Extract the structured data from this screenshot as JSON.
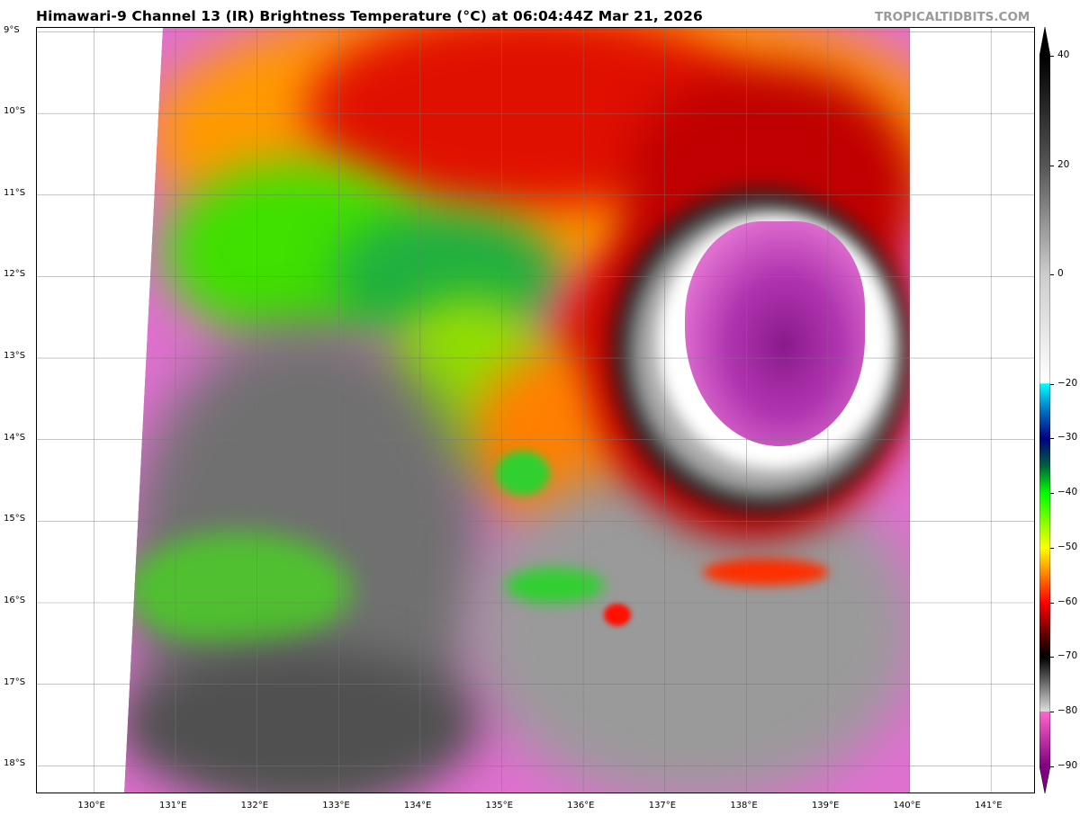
{
  "header": {
    "title": "Himawari-9 Channel 13 (IR) Brightness Temperature (°C) at 06:04:44Z Mar 21, 2026",
    "watermark": "TROPICALTIDBITS.COM"
  },
  "map": {
    "lat_ticks": [
      "9°S",
      "10°S",
      "11°S",
      "12°S",
      "13°S",
      "14°S",
      "15°S",
      "16°S",
      "17°S",
      "18°S"
    ],
    "lon_ticks": [
      "130°E",
      "131°E",
      "132°E",
      "133°E",
      "134°E",
      "135°E",
      "136°E",
      "137°E",
      "138°E",
      "139°E",
      "140°E",
      "141°E"
    ],
    "lon_range": [
      129.3,
      141.55
    ],
    "lat_range": [
      -8.95,
      -18.35
    ],
    "features": "Tropical cyclone with cold cloud tops (below -80°C) centered near 12.8°S 138.2°E over the Gulf of Carpentaria"
  },
  "colorbar": {
    "labels": [
      "40",
      "20",
      "0",
      "−20",
      "−30",
      "−40",
      "−50",
      "−60",
      "−70",
      "−80",
      "−90"
    ],
    "values": [
      40,
      20,
      0,
      -20,
      -30,
      -40,
      -50,
      -60,
      -70,
      -80,
      -90
    ],
    "range": [
      -90,
      40
    ],
    "colors": {
      "40": "#000000",
      "0": "#cccccc",
      "-20": "#ffffff",
      "-20b": "#00ffff",
      "-30": "#000080",
      "-40": "#00ff00",
      "-50": "#ffff00",
      "-60": "#ff0000",
      "-70": "#000000",
      "-80": "#dddddd",
      "-80b": "#ff66cc",
      "-90": "#800080"
    }
  }
}
